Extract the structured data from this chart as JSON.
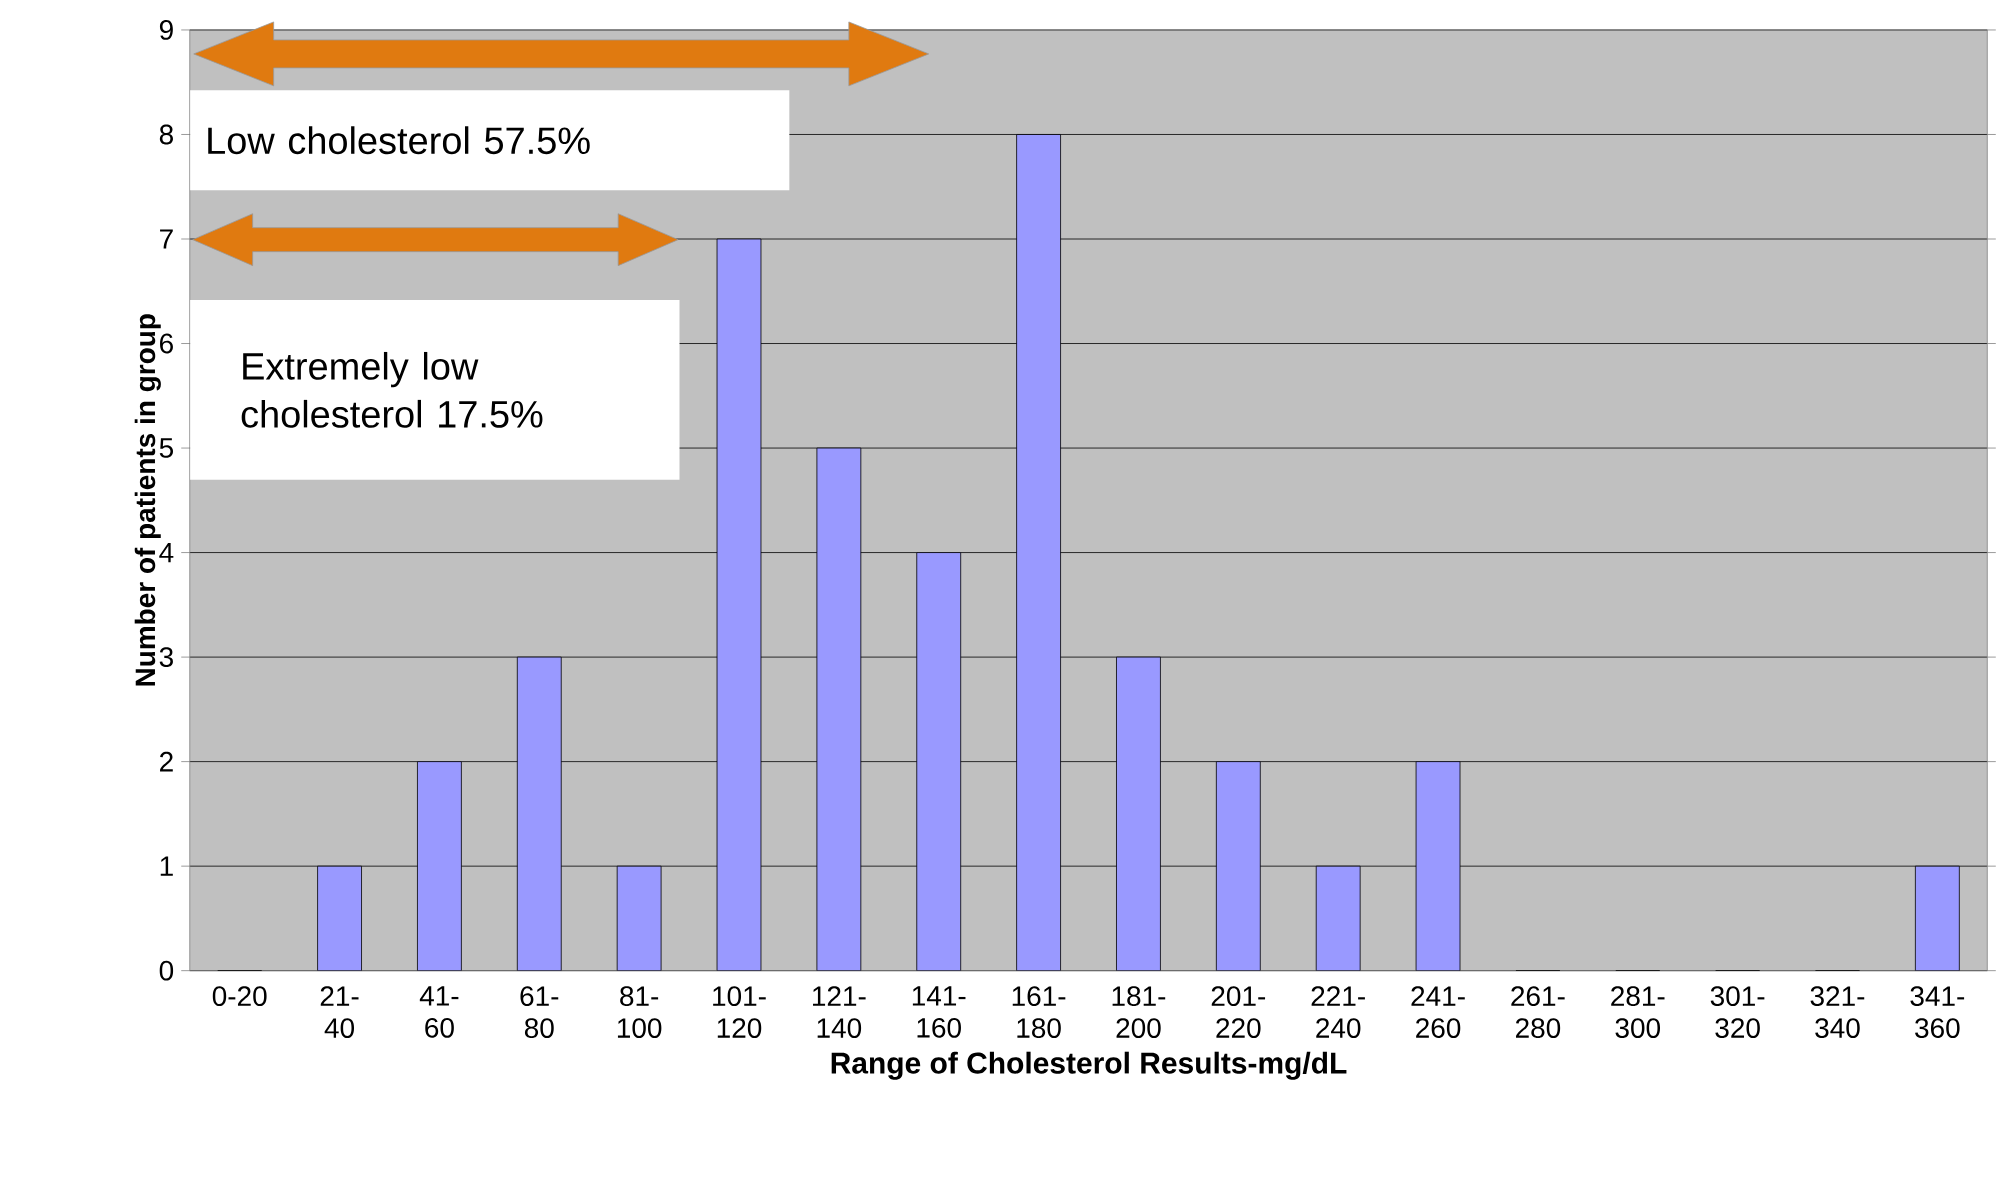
{
  "chart_data": {
    "type": "bar",
    "xlabel": "Range of Cholesterol Results-mg/dL",
    "ylabel": "Number of  patients in group",
    "categories": [
      "0-20",
      "21-40",
      "41-60",
      "61-80",
      "81-100",
      "101-120",
      "121-140",
      "141-160",
      "161-180",
      "181-200",
      "201-220",
      "221-240",
      "241-260",
      "261-280",
      "281-300",
      "301-320",
      "321-340",
      "341-360"
    ],
    "values": [
      0,
      1,
      2,
      3,
      1,
      7,
      5,
      4,
      8,
      3,
      2,
      1,
      2,
      0,
      0,
      0,
      0,
      1
    ],
    "color": "#9999ff",
    "ylim": [
      0,
      9
    ],
    "yticks": [
      0,
      1,
      2,
      3,
      4,
      5,
      6,
      7,
      8,
      9
    ],
    "grid": "y",
    "annotations": [
      "Low cholesterol 57.5%",
      "Extremely low cholesterol 17.5%"
    ]
  }
}
